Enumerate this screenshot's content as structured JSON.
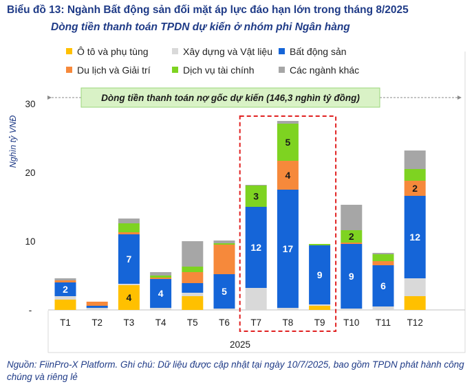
{
  "title": "Biểu đồ 13: Ngành Bất động sản đối mặt áp lực đáo hạn lớn trong tháng 8/2025",
  "subtitle": "Dòng tiền thanh toán TPDN dự kiến ở nhóm phi Ngân hàng",
  "note": "Nguồn: FiinPro-X Platform. Ghi chú: Dữ liệu được cập nhật tại ngày 10/7/2025, bao gồm TPDN phát hành công chúng và riêng lẻ",
  "banner": "Dòng tiền thanh toán nợ gốc dự kiến (146,3 nghìn tỷ đồng)",
  "colors": {
    "auto": "#ffc000",
    "construction": "#d9d9d9",
    "real_estate": "#1565d8",
    "tourism": "#f6893b",
    "financial": "#7ed321",
    "other": "#a6a6a6",
    "highlight": "#e02020",
    "banner_bg": "#d9f2c6",
    "banner_border": "#9ad57a"
  },
  "chart_data": {
    "type": "bar",
    "stacked": true,
    "categories": [
      "T1",
      "T2",
      "T3",
      "T4",
      "T5",
      "T6",
      "T7",
      "T8",
      "T9",
      "T10",
      "T11",
      "T12"
    ],
    "xlabel": "2025",
    "ylabel": "Nghìn tỷ VNĐ",
    "ylim": [
      0,
      30
    ],
    "yticks": [
      "-",
      "10",
      "20",
      "30"
    ],
    "highlight_categories": [
      "T7",
      "T8",
      "T9"
    ],
    "series": [
      {
        "name": "Ô tô và phụ tùng",
        "key": "auto",
        "values": [
          1.5,
          0.0,
          3.6,
          0.0,
          2.0,
          0.0,
          0.0,
          0.0,
          0.6,
          0.0,
          0.0,
          2.0
        ]
      },
      {
        "name": "Xây dựng và Vật liệu",
        "key": "construction",
        "values": [
          0.5,
          0.3,
          0.2,
          0.3,
          0.5,
          0.2,
          3.2,
          0.3,
          0.2,
          0.2,
          0.5,
          2.6
        ]
      },
      {
        "name": "Bất động sản",
        "key": "real_estate",
        "values": [
          2.0,
          0.3,
          7.2,
          4.2,
          1.4,
          5.0,
          11.8,
          17.2,
          8.6,
          9.4,
          6.0,
          12.0
        ]
      },
      {
        "name": "Du lịch và Giải trí",
        "key": "tourism",
        "values": [
          0.3,
          0.6,
          0.3,
          0.2,
          1.6,
          4.3,
          0.0,
          4.2,
          0.0,
          0.2,
          0.6,
          2.2
        ]
      },
      {
        "name": "Dịch vụ tài chính",
        "key": "financial",
        "values": [
          0.0,
          0.0,
          1.3,
          0.3,
          0.8,
          0.2,
          3.1,
          5.4,
          0.2,
          1.8,
          1.0,
          1.7
        ]
      },
      {
        "name": "Các ngành khác",
        "key": "other",
        "values": [
          0.3,
          0.0,
          0.7,
          0.5,
          3.7,
          0.4,
          0.1,
          0.4,
          0.0,
          3.7,
          0.2,
          2.7
        ]
      }
    ],
    "data_labels": [
      {
        "category": "T1",
        "series": "Bất động sản",
        "text": "2"
      },
      {
        "category": "T3",
        "series": "Ô tô và phụ tùng",
        "text": "4"
      },
      {
        "category": "T3",
        "series": "Bất động sản",
        "text": "7"
      },
      {
        "category": "T4",
        "series": "Bất động sản",
        "text": "4"
      },
      {
        "category": "T6",
        "series": "Bất động sản",
        "text": "5"
      },
      {
        "category": "T7",
        "series": "Bất động sản",
        "text": "12"
      },
      {
        "category": "T7",
        "series": "Dịch vụ tài chính",
        "text": "3"
      },
      {
        "category": "T8",
        "series": "Bất động sản",
        "text": "17"
      },
      {
        "category": "T8",
        "series": "Du lịch và Giải trí",
        "text": "4"
      },
      {
        "category": "T8",
        "series": "Dịch vụ tài chính",
        "text": "5"
      },
      {
        "category": "T9",
        "series": "Bất động sản",
        "text": "9"
      },
      {
        "category": "T10",
        "series": "Bất động sản",
        "text": "9"
      },
      {
        "category": "T10",
        "series": "Dịch vụ tài chính",
        "text": "2"
      },
      {
        "category": "T11",
        "series": "Bất động sản",
        "text": "6"
      },
      {
        "category": "T12",
        "series": "Bất động sản",
        "text": "12"
      },
      {
        "category": "T12",
        "series": "Du lịch và Giải trí",
        "text": "2"
      }
    ]
  }
}
